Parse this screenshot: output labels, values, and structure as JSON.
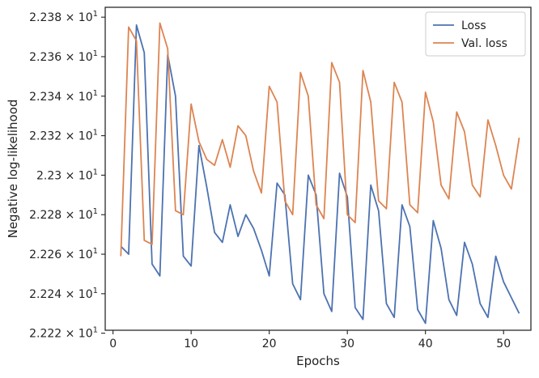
{
  "chart_data": {
    "type": "line",
    "title": "",
    "xlabel": "Epochs",
    "ylabel": "Negative log-likelihood",
    "xlim": [
      -1,
      53.5
    ],
    "ylim": [
      22.2215,
      22.385
    ],
    "x_ticks": [
      0,
      10,
      20,
      30,
      40,
      50
    ],
    "y_ticks": [
      {
        "value": 22.22,
        "mantissa": "2.222",
        "exp": "1"
      },
      {
        "value": 22.24,
        "mantissa": "2.224",
        "exp": "1"
      },
      {
        "value": 22.26,
        "mantissa": "2.226",
        "exp": "1"
      },
      {
        "value": 22.28,
        "mantissa": "2.228",
        "exp": "1"
      },
      {
        "value": 22.3,
        "mantissa": "2.23",
        "exp": "1"
      },
      {
        "value": 22.32,
        "mantissa": "2.232",
        "exp": "1"
      },
      {
        "value": 22.34,
        "mantissa": "2.234",
        "exp": "1"
      },
      {
        "value": 22.36,
        "mantissa": "2.236",
        "exp": "1"
      },
      {
        "value": 22.38,
        "mantissa": "2.238",
        "exp": "1"
      }
    ],
    "tick_base": "× 10",
    "grid": false,
    "legend_position": "top-right",
    "x": [
      1,
      2,
      3,
      4,
      5,
      6,
      7,
      8,
      9,
      10,
      11,
      12,
      13,
      14,
      15,
      16,
      17,
      18,
      19,
      20,
      21,
      22,
      23,
      24,
      25,
      26,
      27,
      28,
      29,
      30,
      31,
      32,
      33,
      34,
      35,
      36,
      37,
      38,
      39,
      40,
      41,
      42,
      43,
      44,
      45,
      46,
      47,
      48,
      49,
      50,
      51,
      52
    ],
    "series": [
      {
        "name": "Loss",
        "color": "#4c72b0",
        "values": [
          22.264,
          22.26,
          22.376,
          22.362,
          22.255,
          22.249,
          22.361,
          22.34,
          22.259,
          22.254,
          22.315,
          22.294,
          22.271,
          22.266,
          22.285,
          22.269,
          22.28,
          22.273,
          22.262,
          22.249,
          22.296,
          22.29,
          22.245,
          22.237,
          22.3,
          22.29,
          22.24,
          22.231,
          22.301,
          22.289,
          22.233,
          22.227,
          22.295,
          22.282,
          22.235,
          22.228,
          22.285,
          22.274,
          22.232,
          22.225,
          22.277,
          22.263,
          22.237,
          22.229,
          22.266,
          22.255,
          22.235,
          22.228,
          22.259,
          22.246,
          22.238,
          22.23
        ]
      },
      {
        "name": "Val. loss",
        "color": "#dd8452",
        "values": [
          22.259,
          22.375,
          22.368,
          22.267,
          22.265,
          22.377,
          22.364,
          22.282,
          22.28,
          22.336,
          22.317,
          22.308,
          22.305,
          22.318,
          22.304,
          22.325,
          22.32,
          22.302,
          22.291,
          22.345,
          22.337,
          22.287,
          22.28,
          22.352,
          22.34,
          22.285,
          22.278,
          22.357,
          22.347,
          22.28,
          22.276,
          22.353,
          22.337,
          22.287,
          22.283,
          22.347,
          22.337,
          22.285,
          22.281,
          22.342,
          22.327,
          22.295,
          22.288,
          22.332,
          22.322,
          22.295,
          22.289,
          22.328,
          22.315,
          22.3,
          22.293,
          22.319
        ]
      }
    ]
  }
}
